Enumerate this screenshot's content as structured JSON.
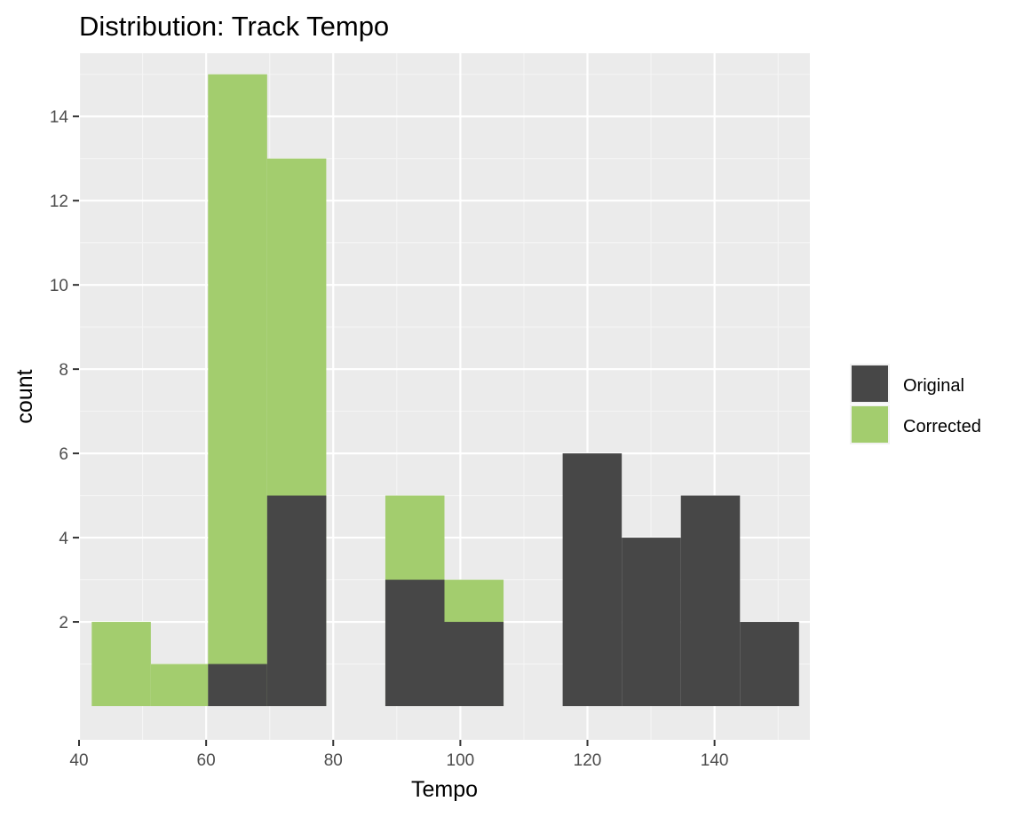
{
  "chart_data": {
    "type": "bar",
    "subtype": "overlaid histogram",
    "title": "Distribution: Track Tempo",
    "xlabel": "Tempo",
    "ylabel": "count",
    "xlim": [
      40,
      155
    ],
    "ylim": [
      -0.8,
      15.5
    ],
    "x_ticks": [
      40,
      60,
      80,
      100,
      120,
      140
    ],
    "y_ticks": [
      2,
      4,
      6,
      8,
      10,
      12,
      14
    ],
    "grid": true,
    "legend_position": "right",
    "series": [
      {
        "name": "Original",
        "color": "#474747",
        "bins": [
          {
            "x0": 60.3,
            "x1": 69.6,
            "count": 1
          },
          {
            "x0": 69.6,
            "x1": 78.9,
            "count": 5
          },
          {
            "x0": 88.2,
            "x1": 97.5,
            "count": 3
          },
          {
            "x0": 97.5,
            "x1": 106.8,
            "count": 2
          },
          {
            "x0": 116.1,
            "x1": 125.4,
            "count": 6
          },
          {
            "x0": 125.4,
            "x1": 134.7,
            "count": 4
          },
          {
            "x0": 134.7,
            "x1": 144.0,
            "count": 5
          },
          {
            "x0": 144.0,
            "x1": 153.3,
            "count": 2
          }
        ]
      },
      {
        "name": "Corrected",
        "color": "#a3cd6e",
        "bins": [
          {
            "x0": 42.0,
            "x1": 51.3,
            "count": 2
          },
          {
            "x0": 51.3,
            "x1": 60.3,
            "count": 1
          },
          {
            "x0": 60.3,
            "x1": 69.6,
            "count": 15
          },
          {
            "x0": 69.6,
            "x1": 78.9,
            "count": 13
          },
          {
            "x0": 88.2,
            "x1": 97.5,
            "count": 5
          },
          {
            "x0": 97.5,
            "x1": 106.8,
            "count": 3
          }
        ]
      }
    ]
  }
}
